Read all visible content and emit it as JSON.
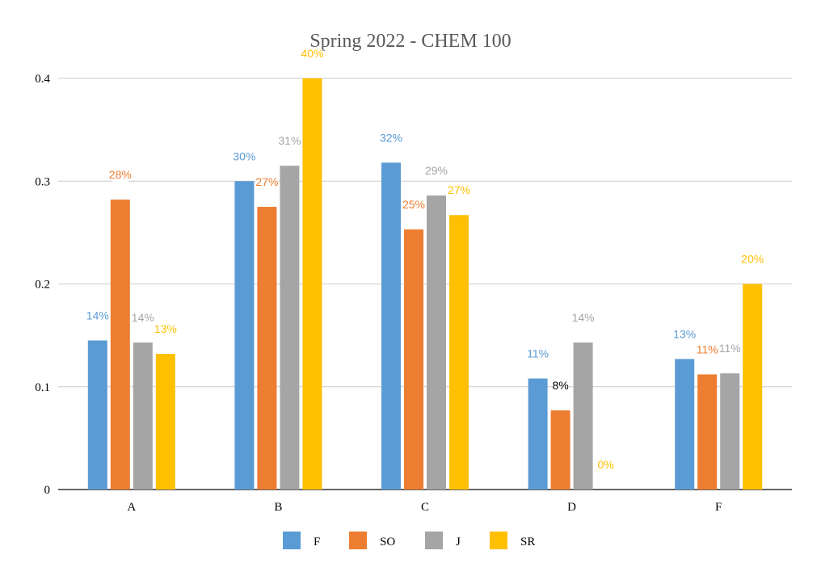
{
  "chart_data": {
    "type": "bar",
    "title": "Spring 2022 - CHEM 100",
    "xlabel": "",
    "ylabel": "",
    "categories": [
      "A",
      "B",
      "C",
      "D",
      "F"
    ],
    "ylim": [
      0,
      0.4
    ],
    "yticks": [
      0,
      0.1,
      0.2,
      0.3,
      0.4
    ],
    "ytick_labels": [
      "0",
      "0.1",
      "0.2",
      "0.3",
      "0.4"
    ],
    "grid": true,
    "legend_position": "bottom",
    "series": [
      {
        "name": "F",
        "color": "#5B9BD5",
        "values": [
          0.145,
          0.3,
          0.318,
          0.108,
          0.127
        ],
        "labels": [
          "14%",
          "30%",
          "32%",
          "11%",
          "13%"
        ]
      },
      {
        "name": "SO",
        "color": "#ED7D31",
        "values": [
          0.282,
          0.275,
          0.253,
          0.077,
          0.112
        ],
        "labels": [
          "28%",
          "27%",
          "25%",
          "8%",
          "11%"
        ]
      },
      {
        "name": "J",
        "color": "#A5A5A5",
        "values": [
          0.143,
          0.315,
          0.286,
          0.143,
          0.113
        ],
        "labels": [
          "14%",
          "31%",
          "29%",
          "14%",
          "11%"
        ]
      },
      {
        "name": "SR",
        "color": "#FFC000",
        "values": [
          0.132,
          0.4,
          0.267,
          0.0,
          0.2
        ],
        "labels": [
          "13%",
          "40%",
          "27%",
          "0%",
          "20%"
        ]
      }
    ]
  }
}
